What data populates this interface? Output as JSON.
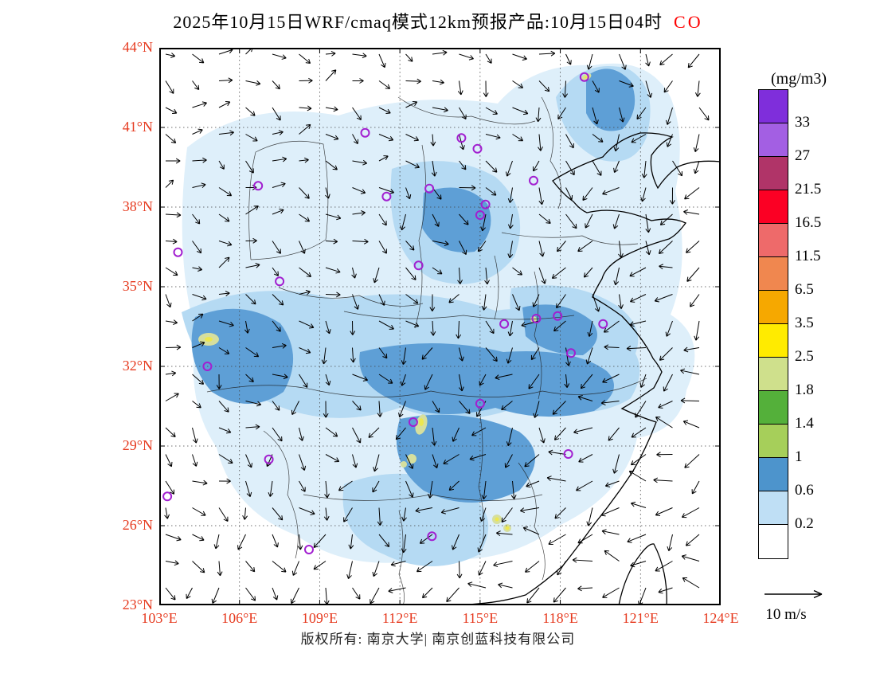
{
  "title": {
    "main": "2025年10月15日WRF/cmaq模式12km预报产品:10月15日04时",
    "species": "CO",
    "species_color": "#ff0000"
  },
  "map": {
    "lat_ticks": [
      "44°N",
      "41°N",
      "38°N",
      "35°N",
      "32°N",
      "29°N",
      "26°N",
      "23°N"
    ],
    "lon_ticks": [
      "103°E",
      "106°E",
      "109°E",
      "112°E",
      "115°E",
      "118°E",
      "121°E",
      "124°E"
    ],
    "lat_range": [
      23,
      44
    ],
    "lon_range": [
      103,
      124
    ],
    "tick_color": "#e63a1f"
  },
  "colorbar": {
    "units": "(mg/m3)",
    "labels": [
      "33",
      "27",
      "21.5",
      "16.5",
      "11.5",
      "6.5",
      "3.5",
      "2.5",
      "1.8",
      "1.4",
      "1",
      "0.6",
      "0.2"
    ],
    "colors_top_to_bottom": [
      "#7f2edb",
      "#a35fe3",
      "#b03468",
      "#fb0024",
      "#ee6a6a",
      "#f0874f",
      "#f6a800",
      "#ffeb00",
      "#cfe08c",
      "#54b03a",
      "#a6cf5a",
      "#4d94cc",
      "#bfdff5",
      "#ffffff"
    ]
  },
  "wind_legend": {
    "speed_label": "10 m/s"
  },
  "footer": {
    "copyright": "版权所有: 南京大学| 南京创蓝科技有限公司"
  },
  "stations_lonlat": [
    [
      118.9,
      42.9
    ],
    [
      110.7,
      40.8
    ],
    [
      114.3,
      40.6
    ],
    [
      114.9,
      40.2
    ],
    [
      106.7,
      38.8
    ],
    [
      111.5,
      38.4
    ],
    [
      113.1,
      38.7
    ],
    [
      115.2,
      38.1
    ],
    [
      117.0,
      39.0
    ],
    [
      115.0,
      37.7
    ],
    [
      103.7,
      36.3
    ],
    [
      112.7,
      35.8
    ],
    [
      107.5,
      35.2
    ],
    [
      115.9,
      33.6
    ],
    [
      117.1,
      33.8
    ],
    [
      117.9,
      33.9
    ],
    [
      119.6,
      33.6
    ],
    [
      118.4,
      32.5
    ],
    [
      104.8,
      32.0
    ],
    [
      115.0,
      30.6
    ],
    [
      112.5,
      29.9
    ],
    [
      118.3,
      28.7
    ],
    [
      107.1,
      28.5
    ],
    [
      103.3,
      27.1
    ],
    [
      108.6,
      25.1
    ],
    [
      113.2,
      25.6
    ]
  ],
  "chart_data": {
    "type": "heatmap",
    "subtype": "filled-contour-map-with-wind-vectors",
    "title": "2025年10月15日WRF/cmaq模式12km预报产品:10月15日04时 CO",
    "variable": "CO",
    "units": "mg/m3",
    "model": "WRF/cmaq 12km",
    "forecast_time": "2025-10-15 04时",
    "x_axis": {
      "ticks": [
        "103°E",
        "106°E",
        "109°E",
        "112°E",
        "115°E",
        "118°E",
        "121°E",
        "124°E"
      ],
      "range": [
        103,
        124
      ],
      "unit": "°E"
    },
    "y_axis": {
      "ticks": [
        "44°N",
        "41°N",
        "38°N",
        "35°N",
        "32°N",
        "29°N",
        "26°N",
        "23°N"
      ],
      "range": [
        23,
        44
      ],
      "unit": "°N"
    },
    "contour_levels": [
      0.2,
      0.6,
      1,
      1.4,
      1.8,
      2.5,
      3.5,
      6.5,
      11.5,
      16.5,
      21.5,
      27,
      33
    ],
    "level_colors_low_to_high": [
      "#ffffff",
      "#bfdff5",
      "#4d94cc",
      "#a6cf5a",
      "#54b03a",
      "#cfe08c",
      "#ffeb00",
      "#f6a800",
      "#f0874f",
      "#ee6a6a",
      "#fb0024",
      "#b03468",
      "#a35fe3",
      "#7f2edb"
    ],
    "legend_position": "right",
    "grid": true,
    "wind_reference": "10 m/s"
  }
}
